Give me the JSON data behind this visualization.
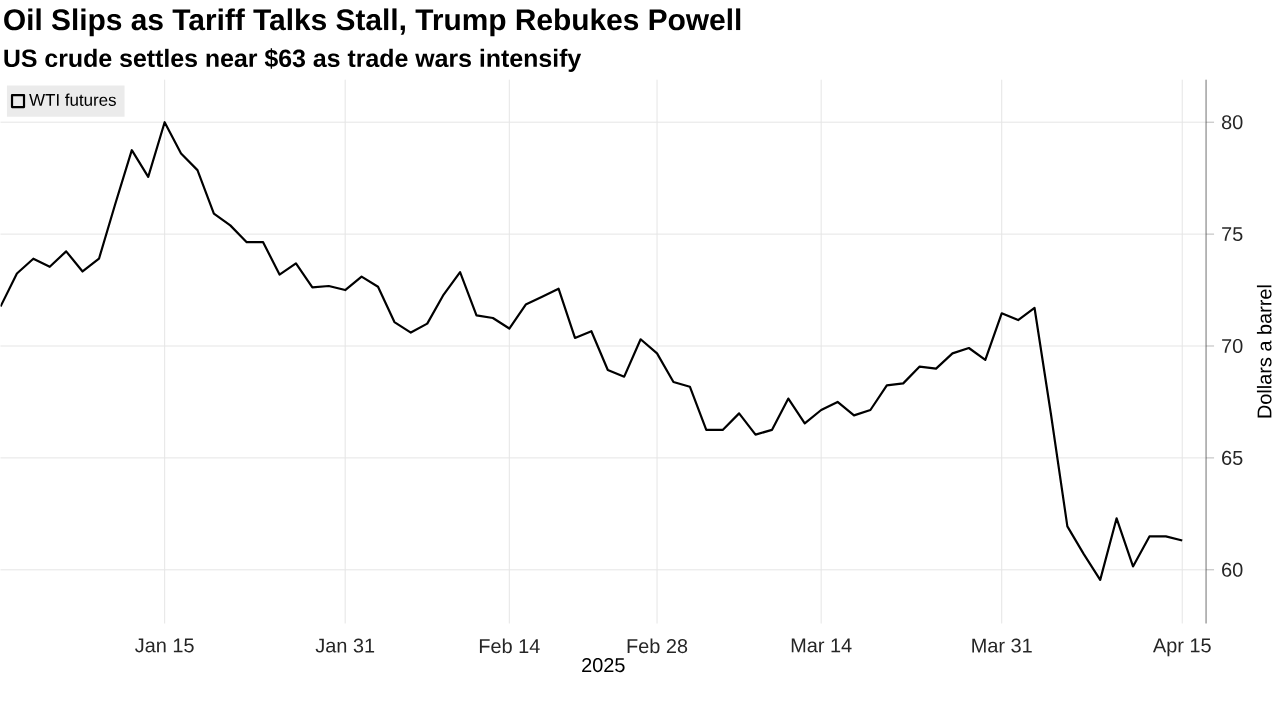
{
  "chart_data": {
    "type": "line",
    "title": "Oil Slips as Tariff Talks Stall, Trump Rebukes Powell",
    "subtitle": "US crude settles near $63 as trade wars intensify",
    "xlabel": "2025",
    "ylabel": "Dollars a barrel",
    "categories": [
      null,
      null,
      null,
      null,
      null,
      null,
      null,
      null,
      null,
      null,
      "Jan 15",
      null,
      null,
      null,
      null,
      null,
      null,
      null,
      null,
      null,
      null,
      "Jan 31",
      null,
      null,
      null,
      null,
      null,
      null,
      null,
      null,
      null,
      "Feb 14",
      null,
      null,
      null,
      null,
      null,
      null,
      null,
      null,
      "Feb 28",
      null,
      null,
      null,
      null,
      null,
      null,
      null,
      null,
      null,
      "Mar 14",
      null,
      null,
      null,
      null,
      null,
      null,
      null,
      null,
      null,
      null,
      "Mar 31",
      null,
      null,
      null,
      null,
      null,
      null,
      null,
      null,
      null,
      null,
      "Apr 15"
    ],
    "series": [
      {
        "name": "WTI futures",
        "color": "#000000",
        "values": [
          71.76,
          73.24,
          73.9,
          73.54,
          74.23,
          73.33,
          73.9,
          76.37,
          78.75,
          77.56,
          80.0,
          78.6,
          77.86,
          75.92,
          75.39,
          74.64,
          74.64,
          73.19,
          73.69,
          72.62,
          72.68,
          72.5,
          73.1,
          72.65,
          71.07,
          70.6,
          71.0,
          72.3,
          73.3,
          71.37,
          71.25,
          70.78,
          71.85,
          72.2,
          72.56,
          70.36,
          70.66,
          68.93,
          68.63,
          70.3,
          69.67,
          68.39,
          68.18,
          66.25,
          66.25,
          66.99,
          66.04,
          66.25,
          67.65,
          66.54,
          67.14,
          67.5,
          66.9,
          67.14,
          68.24,
          68.33,
          69.08,
          68.99,
          69.67,
          69.91,
          69.38,
          71.46,
          71.16,
          71.7,
          66.95,
          61.94,
          60.7,
          59.55,
          62.3,
          60.15,
          61.49,
          61.49,
          61.31
        ]
      }
    ],
    "ylim": [
      57.6,
      81.9
    ],
    "yticks": [
      60,
      65,
      70,
      75,
      80
    ],
    "grid": true,
    "legend": "top left"
  }
}
